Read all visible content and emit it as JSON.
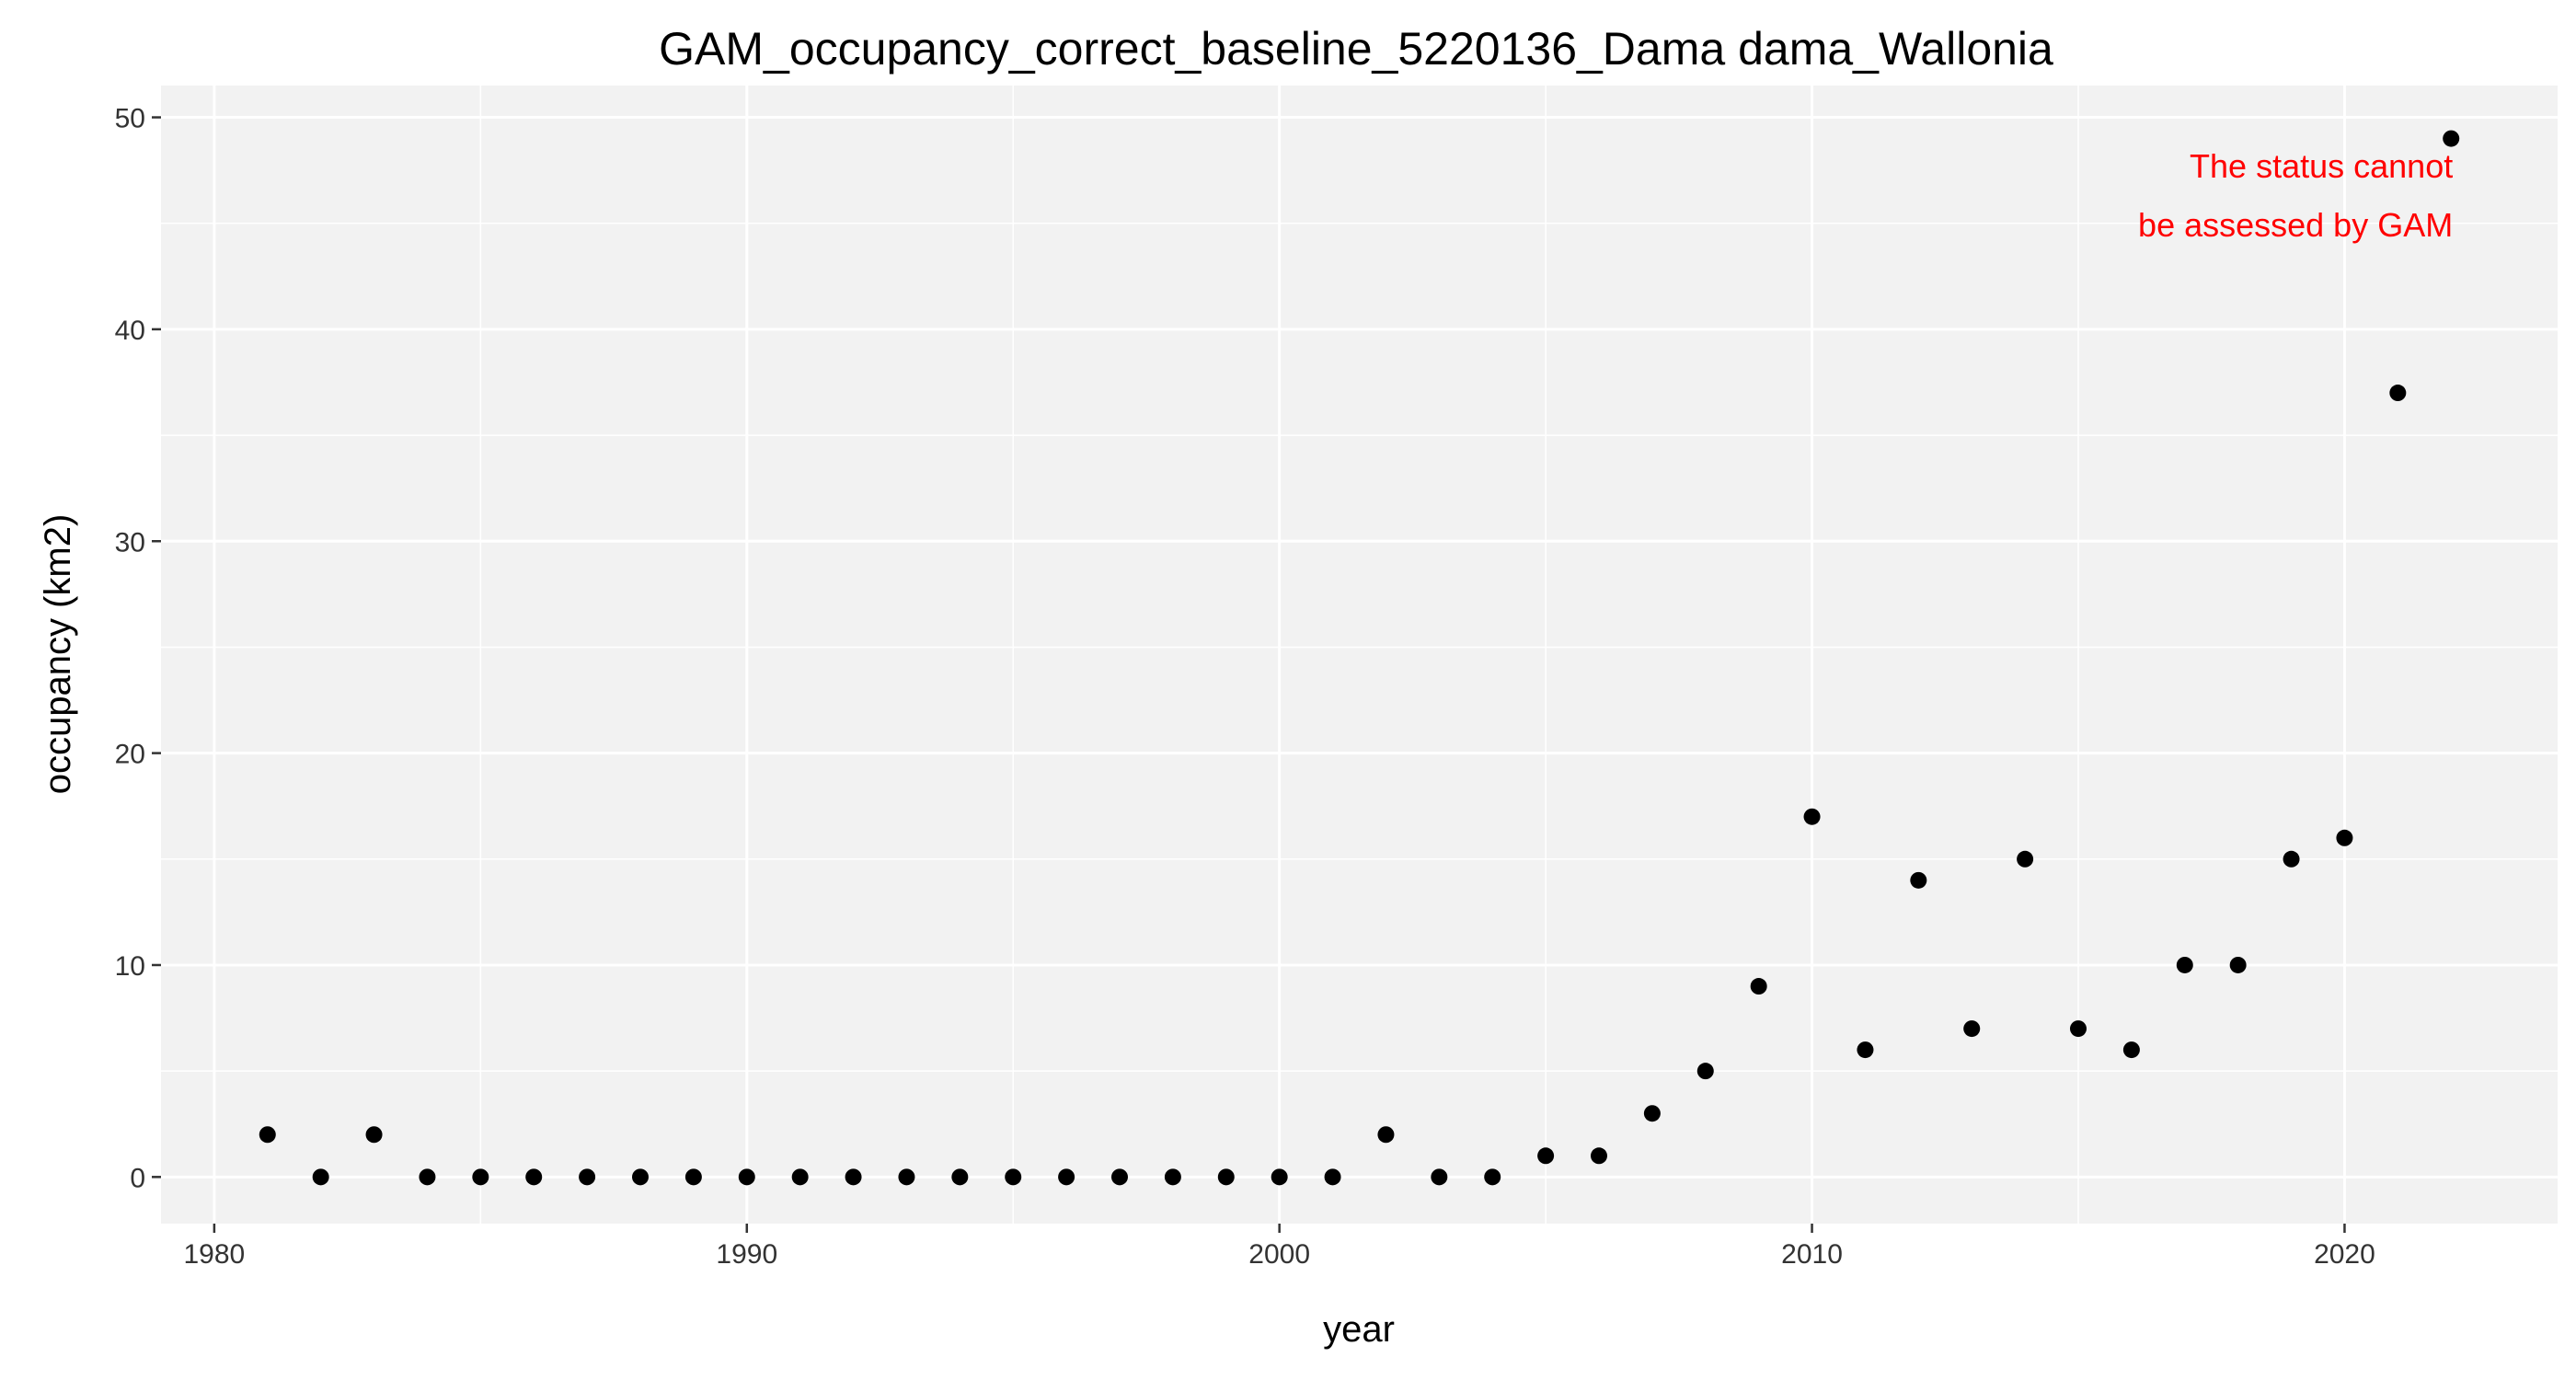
{
  "chart_data": {
    "type": "scatter",
    "title": "GAM_occupancy_correct_baseline_5220136_Dama dama_Wallonia",
    "xlabel": "year",
    "ylabel": "occupancy (km2)",
    "xlim": [
      1979,
      2024
    ],
    "ylim": [
      -2.2,
      51.5
    ],
    "x_ticks": [
      1980,
      1990,
      2000,
      2010,
      2020
    ],
    "y_ticks": [
      0,
      10,
      20,
      30,
      40,
      50
    ],
    "grid": true,
    "legend": "none",
    "annotation": {
      "lines": [
        "The status cannot",
        "be assessed by GAM"
      ],
      "position": "top-right",
      "color": "#ff0000"
    },
    "colors": {
      "panel": "#f2f2f2",
      "grid": "#ffffff",
      "points": "#000000"
    },
    "x": [
      1981,
      1982,
      1983,
      1984,
      1985,
      1986,
      1987,
      1988,
      1989,
      1990,
      1991,
      1992,
      1993,
      1994,
      1995,
      1996,
      1997,
      1998,
      1999,
      2000,
      2001,
      2002,
      2003,
      2004,
      2005,
      2006,
      2007,
      2008,
      2009,
      2010,
      2011,
      2012,
      2013,
      2014,
      2015,
      2016,
      2017,
      2018,
      2019,
      2020,
      2021,
      2022
    ],
    "y": [
      2,
      0,
      2,
      0,
      0,
      0,
      0,
      0,
      0,
      0,
      0,
      0,
      0,
      0,
      0,
      0,
      0,
      0,
      0,
      0,
      0,
      2,
      0,
      0,
      1,
      1,
      3,
      5,
      9,
      17,
      6,
      14,
      7,
      15,
      7,
      6,
      10,
      10,
      15,
      16,
      37,
      49
    ]
  }
}
